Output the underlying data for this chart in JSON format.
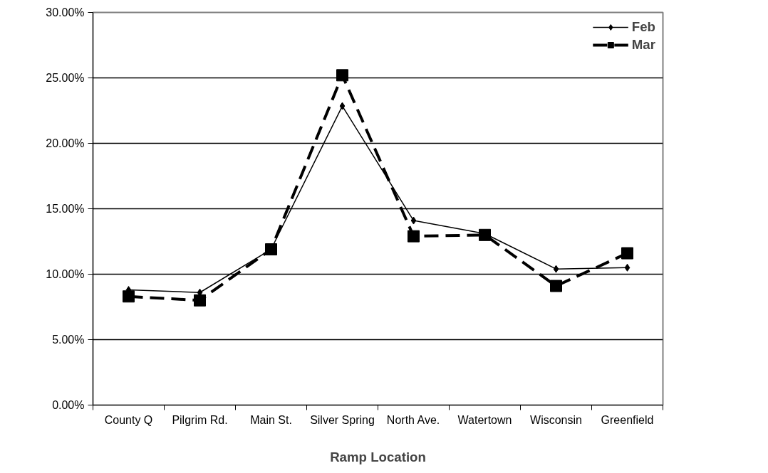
{
  "chart_data": {
    "type": "line",
    "xlabel": "Ramp Location",
    "categories": [
      "County Q",
      "Pilgrim Rd.",
      "Main St.",
      "Silver Spring",
      "North Ave.",
      "Watertown",
      "Wisconsin",
      "Greenfield"
    ],
    "series": [
      {
        "name": "Feb",
        "color": "#000000",
        "marker": "diamond",
        "line_style": "solid",
        "values": [
          8.8,
          8.6,
          11.9,
          22.85,
          14.1,
          13.1,
          10.4,
          10.5
        ]
      },
      {
        "name": "Mar",
        "color": "#000000",
        "marker": "square",
        "line_style": "dashed",
        "values": [
          8.3,
          8.0,
          11.9,
          25.2,
          12.9,
          13.0,
          9.1,
          11.6
        ]
      }
    ],
    "ylim": [
      0,
      30
    ],
    "yticks": [
      {
        "value": 0,
        "label": "0.00%"
      },
      {
        "value": 5,
        "label": "5.00%"
      },
      {
        "value": 10,
        "label": "10.00%"
      },
      {
        "value": 15,
        "label": "15.00%"
      },
      {
        "value": 20,
        "label": "20.00%"
      },
      {
        "value": 25,
        "label": "25.00%"
      },
      {
        "value": 30,
        "label": "30.00%"
      }
    ],
    "grid": "y",
    "legend": "top right"
  }
}
